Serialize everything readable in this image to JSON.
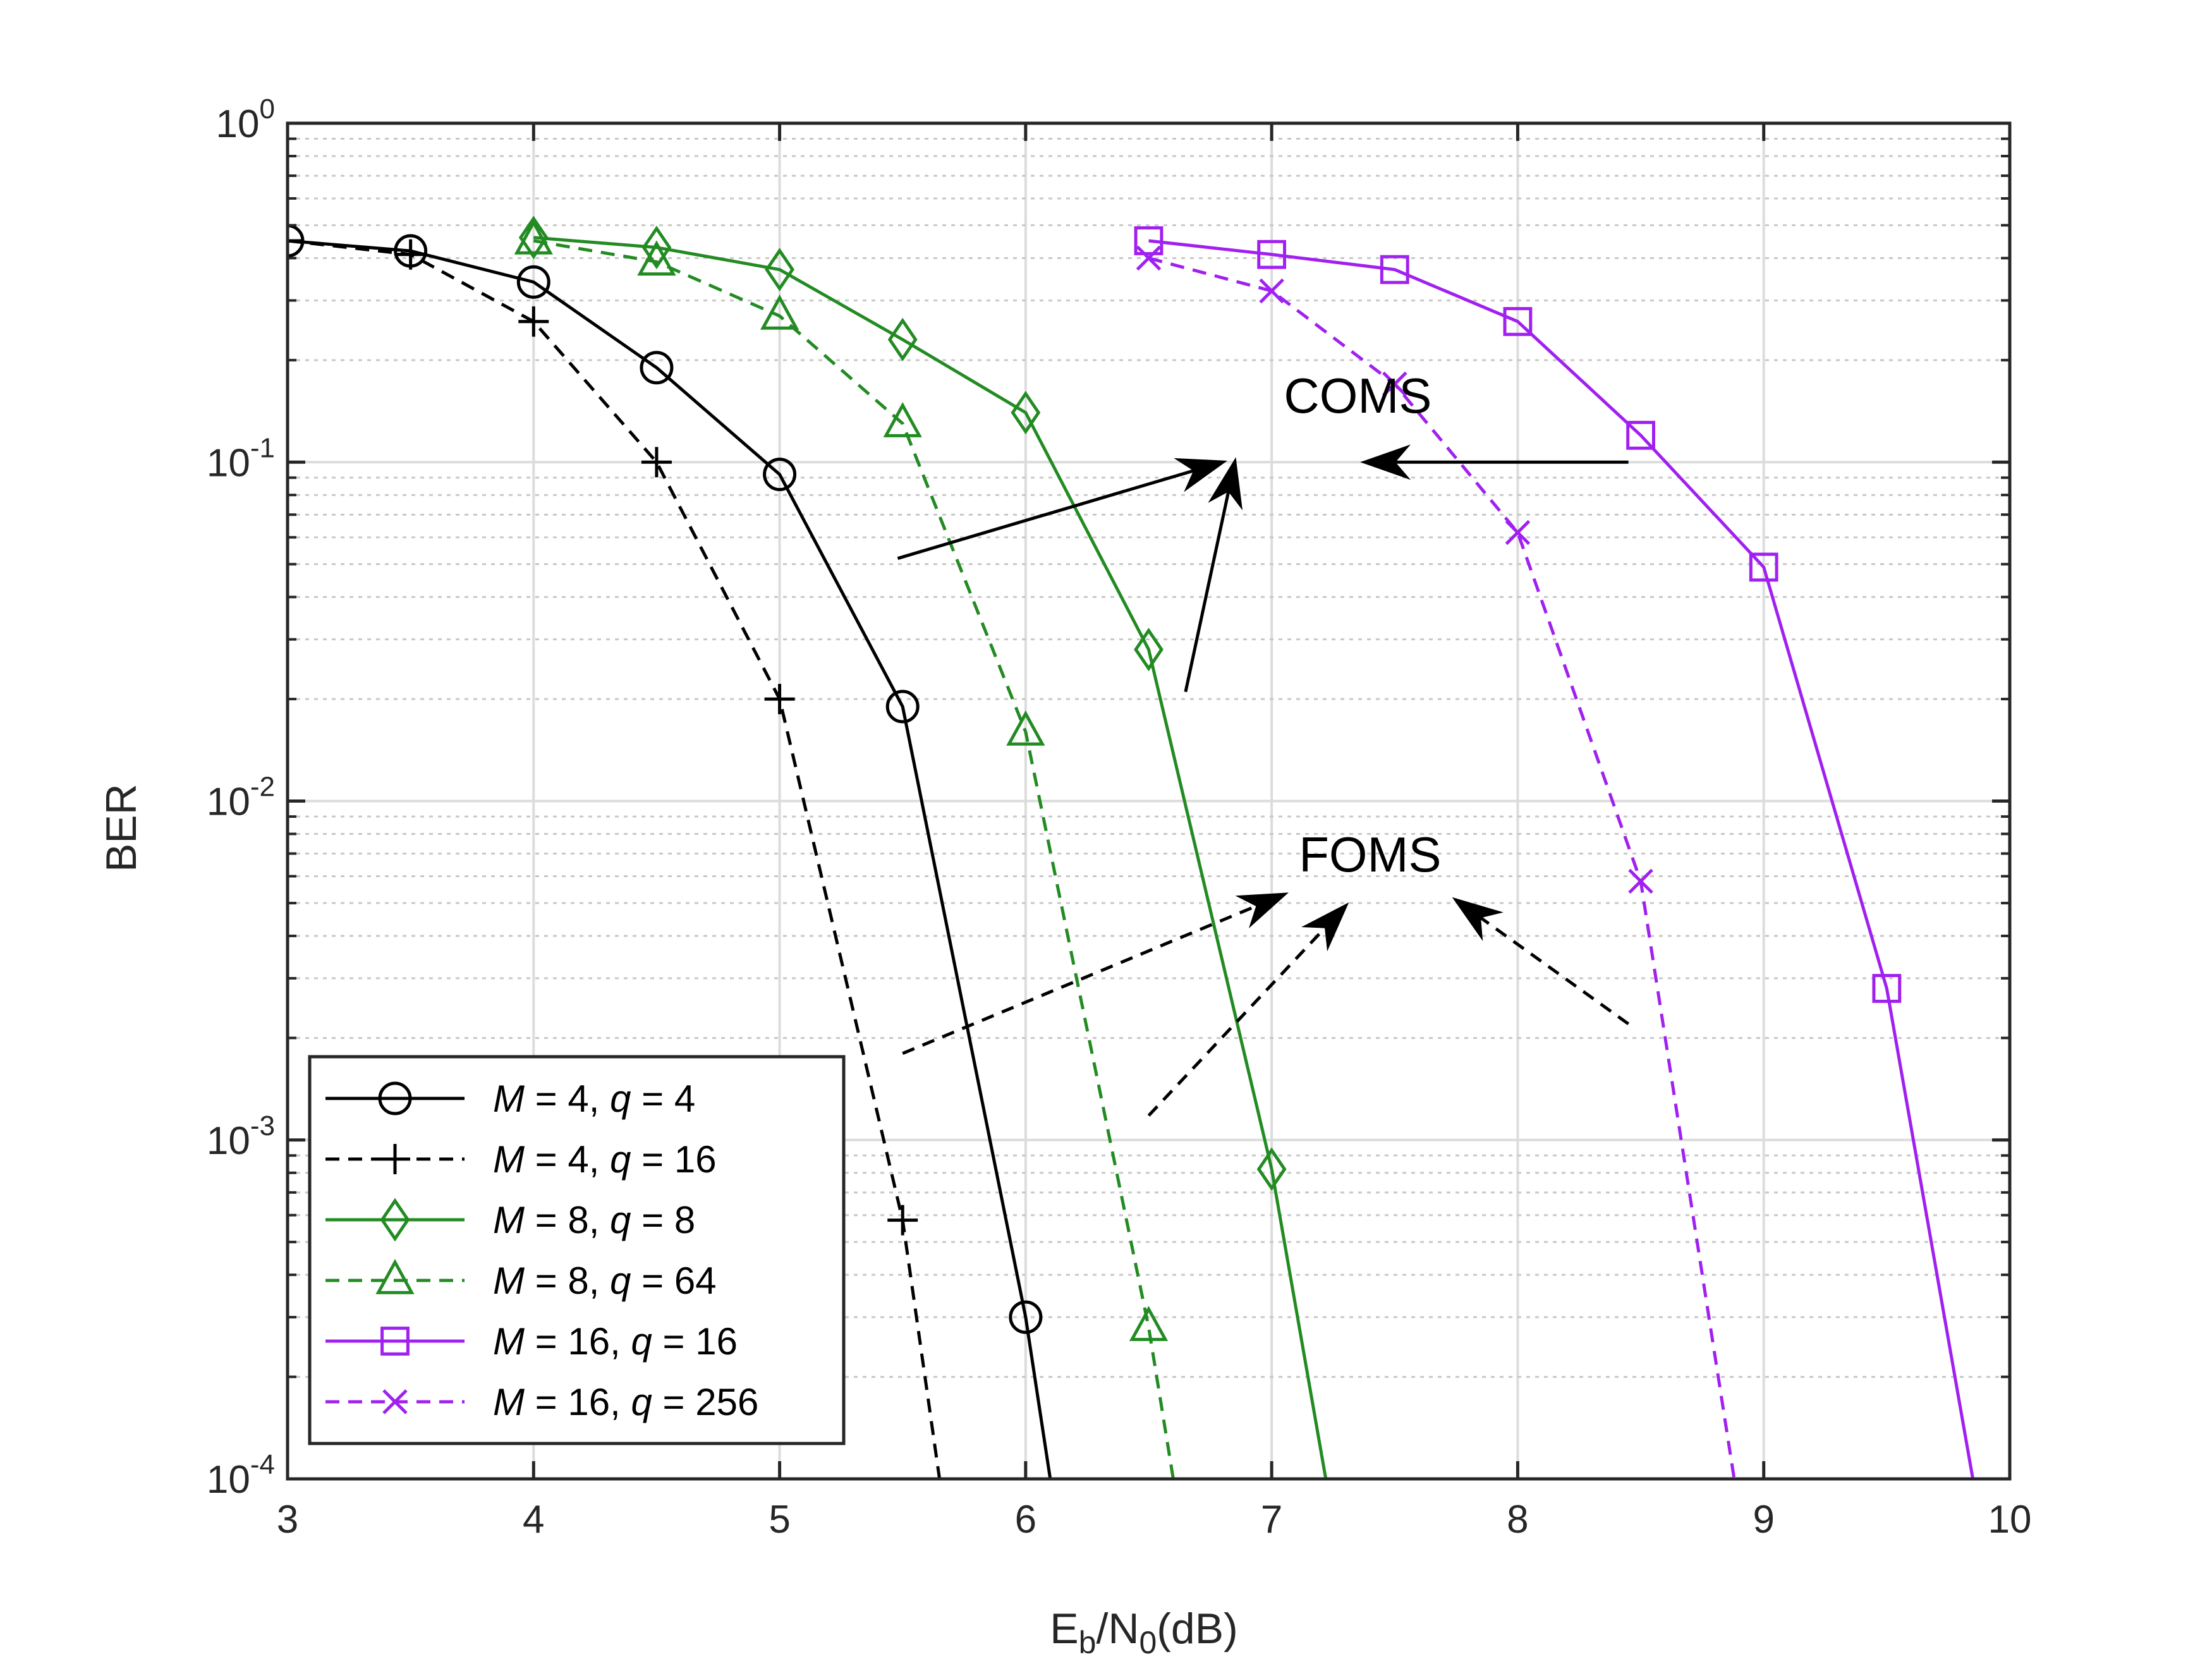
{
  "chart_data": {
    "type": "line",
    "title": "",
    "xlabel": {
      "base": "E",
      "sub1": "b",
      "mid": "/N",
      "sub2": "0",
      "tail": "(dB)"
    },
    "ylabel": "BER",
    "xlim": [
      3,
      10
    ],
    "ylim": [
      0.0001,
      1
    ],
    "yscale": "log",
    "grid": true,
    "legend_position": "bottom-left",
    "x_ticks": [
      "3",
      "4",
      "5",
      "6",
      "7",
      "8",
      "9",
      "10"
    ],
    "y_ticks": [
      {
        "base": "10",
        "exp": "0"
      },
      {
        "base": "10",
        "exp": "-1"
      },
      {
        "base": "10",
        "exp": "-2"
      },
      {
        "base": "10",
        "exp": "-3"
      },
      {
        "base": "10",
        "exp": "-4"
      }
    ],
    "series": [
      {
        "name": "M = 4, q = 4",
        "legend": {
          "m": "M",
          "mval": " = 4, ",
          "q": "q",
          "qval": " = 4"
        },
        "color": "#000000",
        "dash": "solid",
        "marker": "circle",
        "x": [
          3,
          3.5,
          4,
          4.5,
          5,
          5.5,
          6,
          6.1
        ],
        "y": [
          0.45,
          0.42,
          0.34,
          0.19,
          0.092,
          0.019,
          0.0003,
          0.0001
        ],
        "marker_count": 7
      },
      {
        "name": "M = 4, q = 16",
        "legend": {
          "m": "M",
          "mval": " = 4, ",
          "q": "q",
          "qval": " = 16"
        },
        "color": "#000000",
        "dash": "dashed",
        "marker": "plus",
        "x": [
          3,
          3.5,
          4,
          4.5,
          5,
          5.5,
          5.65
        ],
        "y": [
          0.45,
          0.41,
          0.26,
          0.1,
          0.02,
          0.00058,
          0.0001
        ],
        "marker_count": 6
      },
      {
        "name": "M = 8, q = 8",
        "legend": {
          "m": "M",
          "mval": " = 8, ",
          "q": "q",
          "qval": " = 8"
        },
        "color": "#228B22",
        "dash": "solid",
        "marker": "diamond",
        "x": [
          4,
          4.5,
          5,
          5.5,
          6,
          6.5,
          7,
          7.22
        ],
        "y": [
          0.46,
          0.43,
          0.37,
          0.23,
          0.14,
          0.028,
          0.00082,
          0.0001
        ],
        "marker_count": 7
      },
      {
        "name": "M = 8, q = 64",
        "legend": {
          "m": "M",
          "mval": " = 8, ",
          "q": "q",
          "qval": " = 64"
        },
        "color": "#228B22",
        "dash": "dashed",
        "marker": "triangle",
        "x": [
          4,
          4.5,
          5,
          5.5,
          6,
          6.5,
          6.6
        ],
        "y": [
          0.45,
          0.39,
          0.27,
          0.13,
          0.016,
          0.00028,
          0.0001
        ],
        "marker_count": 6
      },
      {
        "name": "M = 16, q = 16",
        "legend": {
          "m": "M",
          "mval": " = 16, ",
          "q": "q",
          "qval": " = 16"
        },
        "color": "#A020F0",
        "dash": "solid",
        "marker": "square",
        "x": [
          6.5,
          7,
          7.5,
          8,
          8.5,
          9,
          9.5,
          9.85
        ],
        "y": [
          0.45,
          0.41,
          0.37,
          0.26,
          0.12,
          0.049,
          0.0028,
          0.0001
        ],
        "marker_count": 7
      },
      {
        "name": "M = 16, q = 256",
        "legend": {
          "m": "M",
          "mval": " = 16, ",
          "q": "q",
          "qval": " = 256"
        },
        "color": "#A020F0",
        "dash": "dashed",
        "marker": "x",
        "x": [
          6.5,
          7,
          7.5,
          8,
          8.5,
          8.88
        ],
        "y": [
          0.4,
          0.32,
          0.17,
          0.062,
          0.0058,
          0.0001
        ],
        "marker_count": 5
      }
    ],
    "annotations": [
      {
        "text": "COMS",
        "at": [
          7.35,
          0.14
        ],
        "arrow_style": "solid",
        "arrows": [
          {
            "from": [
              5.48,
              0.052
            ],
            "to": [
              6.8,
              0.1
            ]
          },
          {
            "from": [
              6.65,
              0.021
            ],
            "to": [
              6.85,
              0.1
            ]
          },
          {
            "from": [
              8.45,
              0.1
            ],
            "to": [
              7.38,
              0.1
            ]
          }
        ]
      },
      {
        "text": "FOMS",
        "at": [
          7.4,
          0.0062
        ],
        "arrow_style": "dashed",
        "arrows": [
          {
            "from": [
              5.5,
              0.0018
            ],
            "to": [
              7.05,
              0.0053
            ]
          },
          {
            "from": [
              6.5,
              0.00118
            ],
            "to": [
              7.3,
              0.0049
            ]
          },
          {
            "from": [
              8.45,
              0.0022
            ],
            "to": [
              7.75,
              0.0051
            ]
          }
        ]
      }
    ]
  }
}
